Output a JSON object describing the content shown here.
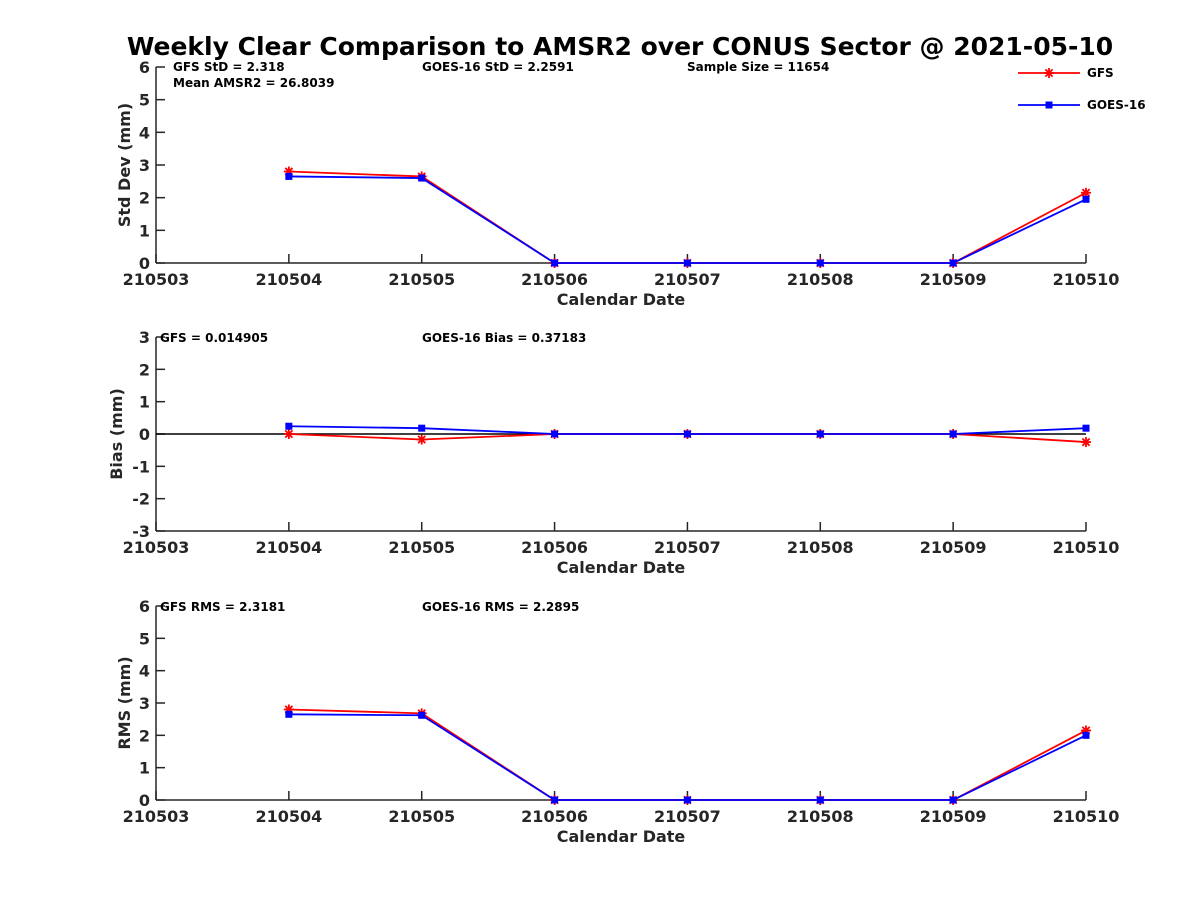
{
  "figure_title": "Weekly Clear Comparison to AMSR2 over CONUS Sector @ 2021-05-10",
  "legend": [
    {
      "label": "GFS",
      "color": "#ff0000",
      "marker": "asterisk"
    },
    {
      "label": "GOES-16",
      "color": "#0000ff",
      "marker": "square"
    }
  ],
  "chart_data": [
    {
      "type": "line",
      "title": "Weekly Clear Comparison to AMSR2 over CONUS Sector @ 2021-05-10",
      "xlabel": "Calendar Date",
      "ylabel": "Std Dev (mm)",
      "categories": [
        "210503",
        "210504",
        "210505",
        "210506",
        "210507",
        "210508",
        "210509",
        "210510"
      ],
      "ylim": [
        0,
        6
      ],
      "yticks": [
        "0",
        "1",
        "2",
        "3",
        "4",
        "5",
        "6"
      ],
      "grid": false,
      "legend_position": "top-right",
      "series": [
        {
          "name": "GFS",
          "color": "#ff0000",
          "x": [
            "210504",
            "210505",
            "210506",
            "210507",
            "210508",
            "210509",
            "210510"
          ],
          "values": [
            2.8,
            2.65,
            0,
            0,
            0,
            0,
            2.15
          ]
        },
        {
          "name": "GOES-16",
          "color": "#0000ff",
          "x": [
            "210504",
            "210505",
            "210506",
            "210507",
            "210508",
            "210509",
            "210510"
          ],
          "values": [
            2.65,
            2.6,
            0,
            0,
            0,
            0,
            1.95
          ]
        }
      ],
      "annotations": [
        "GFS StD = 2.318",
        "Mean AMSR2 = 26.8039",
        "GOES-16 StD = 2.2591",
        "Sample Size = 11654"
      ]
    },
    {
      "type": "line",
      "xlabel": "Calendar Date",
      "ylabel": "Bias (mm)",
      "categories": [
        "210503",
        "210504",
        "210505",
        "210506",
        "210507",
        "210508",
        "210509",
        "210510"
      ],
      "ylim": [
        -3,
        3
      ],
      "yticks": [
        "-3",
        "-2",
        "-1",
        "0",
        "1",
        "2",
        "3"
      ],
      "grid": false,
      "zero_line": true,
      "series": [
        {
          "name": "GFS",
          "color": "#ff0000",
          "x": [
            "210504",
            "210505",
            "210506",
            "210507",
            "210508",
            "210509",
            "210510"
          ],
          "values": [
            0,
            -0.17,
            0,
            0,
            0,
            0,
            -0.25
          ]
        },
        {
          "name": "GOES-16",
          "color": "#0000ff",
          "x": [
            "210504",
            "210505",
            "210506",
            "210507",
            "210508",
            "210509",
            "210510"
          ],
          "values": [
            0.24,
            0.18,
            0,
            0,
            0,
            0,
            0.18
          ]
        }
      ],
      "annotations": [
        "GFS = 0.014905",
        "GOES-16 Bias  = 0.37183"
      ]
    },
    {
      "type": "line",
      "xlabel": "Calendar Date",
      "ylabel": "RMS (mm)",
      "categories": [
        "210503",
        "210504",
        "210505",
        "210506",
        "210507",
        "210508",
        "210509",
        "210510"
      ],
      "ylim": [
        0,
        6
      ],
      "yticks": [
        "0",
        "1",
        "2",
        "3",
        "4",
        "5",
        "6"
      ],
      "grid": false,
      "series": [
        {
          "name": "GFS",
          "color": "#ff0000",
          "x": [
            "210504",
            "210505",
            "210506",
            "210507",
            "210508",
            "210509",
            "210510"
          ],
          "values": [
            2.8,
            2.68,
            0,
            0,
            0,
            0,
            2.15
          ]
        },
        {
          "name": "GOES-16",
          "color": "#0000ff",
          "x": [
            "210504",
            "210505",
            "210506",
            "210507",
            "210508",
            "210509",
            "210510"
          ],
          "values": [
            2.65,
            2.62,
            0,
            0,
            0,
            0,
            2.0
          ]
        }
      ],
      "annotations": [
        "GFS RMS = 2.3181",
        "GOES-16 RMS = 2.2895"
      ]
    }
  ]
}
